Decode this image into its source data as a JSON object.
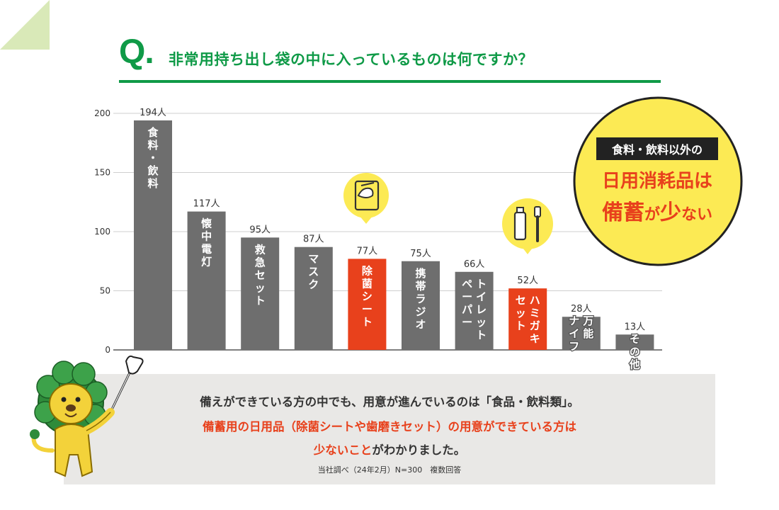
{
  "header": {
    "q_mark": "Q.",
    "question": "非常用持ち出し袋の中に入っているものは何ですか？"
  },
  "colors": {
    "accent_green": "#0f9a47",
    "bar_gray": "#6e6e6e",
    "bar_highlight": "#e8411c",
    "bubble_yellow": "#fcea54"
  },
  "callout": {
    "tag": "食料・飲料以外の",
    "line1": "日用消耗品は",
    "line2_a": "備蓄",
    "line2_b": "が",
    "line2_c": "少",
    "line2_d": "ない"
  },
  "icons": [
    "wet-wipe-icon",
    "toothpaste-toothbrush-icon",
    "lion-mascot-icon",
    "pointing-hand-icon"
  ],
  "chart_data": {
    "type": "bar",
    "categories": [
      "食料・飲料",
      "懐中電灯",
      "救急セット",
      "マスク",
      "除菌シート",
      "携帯ラジオ",
      "トイレットペーパー",
      "ハミガキセット",
      "万能ナイフ",
      "その他"
    ],
    "values": [
      194,
      117,
      95,
      87,
      77,
      75,
      66,
      52,
      28,
      13
    ],
    "value_labels": [
      "194人",
      "117人",
      "95人",
      "87人",
      "77人",
      "75人",
      "66人",
      "52人",
      "28人",
      "13人"
    ],
    "highlight": [
      false,
      false,
      false,
      false,
      true,
      false,
      false,
      true,
      false,
      false
    ],
    "bar_text_columns": [
      [
        "食料・飲料"
      ],
      [
        "懐中電灯"
      ],
      [
        "救急セット"
      ],
      [
        "マスク"
      ],
      [
        "除菌シート"
      ],
      [
        "携帯ラジオ"
      ],
      [
        "トイレット",
        "ペーパー"
      ],
      [
        "ハミガキ",
        "セット"
      ],
      [
        "万能",
        "ナイフ"
      ],
      [
        "その他"
      ]
    ],
    "yticks": [
      0,
      50,
      100,
      150,
      200
    ],
    "ylim": [
      0,
      200
    ],
    "grid": true,
    "unit": "人"
  },
  "summary": {
    "line1": "備えができている方の中でも、用意が進んでいるのは「食品・飲料類」。",
    "line2": "備蓄用の日用品（除菌シートや歯磨きセット）の用意ができている方は",
    "line3_red": "少ないこと",
    "line3_rest": "がわかりました。",
    "source": "当社調べ（24年2月）N=300　複数回答"
  }
}
